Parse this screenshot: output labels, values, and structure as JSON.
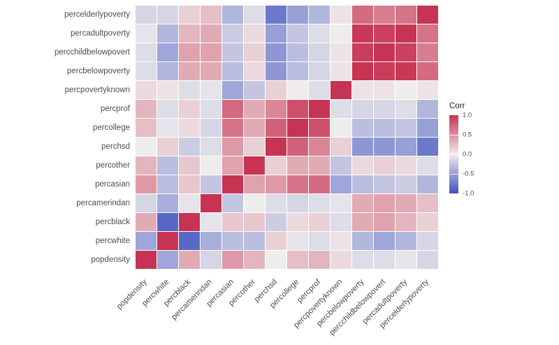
{
  "figure": {
    "background": "#ffffff"
  },
  "chart_data": {
    "type": "heatmap",
    "title": "",
    "variables": [
      "popdensity",
      "percwhite",
      "percblack",
      "percamerindan",
      "percasian",
      "percother",
      "perchsd",
      "percollege",
      "percprof",
      "percpovertyknown",
      "percbelowpoverty",
      "percchildbelowpovert",
      "percadultpoverty",
      "percelderlypoverty"
    ],
    "row_order_note": "matrix rows/cols follow `variables`; displayed with first variable at bottom-left, diagonal running bottom-left to top-right",
    "value_range": [
      -1,
      1
    ],
    "matrix": [
      [
        1.0,
        -0.45,
        0.35,
        -0.15,
        0.45,
        0.3,
        0.0,
        0.25,
        0.3,
        0.1,
        -0.1,
        -0.1,
        -0.05,
        -0.15
      ],
      [
        -0.45,
        1.0,
        -0.85,
        -0.4,
        -0.3,
        -0.3,
        0.15,
        -0.05,
        -0.1,
        0.05,
        -0.35,
        -0.45,
        -0.35,
        -0.15
      ],
      [
        0.35,
        -0.85,
        1.0,
        -0.05,
        0.2,
        0.2,
        -0.2,
        0.1,
        0.15,
        -0.1,
        0.35,
        0.4,
        0.3,
        0.15
      ],
      [
        -0.15,
        -0.4,
        -0.05,
        1.0,
        -0.25,
        0.0,
        -0.1,
        -0.15,
        -0.1,
        -0.05,
        0.35,
        0.4,
        0.35,
        0.25
      ],
      [
        0.45,
        -0.3,
        0.2,
        -0.25,
        1.0,
        0.4,
        0.45,
        0.65,
        0.7,
        -0.45,
        -0.3,
        -0.25,
        -0.2,
        -0.35
      ],
      [
        0.3,
        -0.3,
        0.2,
        0.0,
        0.4,
        1.0,
        0.15,
        0.35,
        0.35,
        -0.25,
        0.1,
        0.15,
        0.1,
        -0.1
      ],
      [
        0.0,
        0.15,
        -0.2,
        -0.1,
        0.45,
        0.15,
        1.0,
        0.75,
        0.55,
        0.15,
        -0.55,
        -0.55,
        -0.5,
        -0.75
      ],
      [
        0.25,
        -0.05,
        0.1,
        -0.15,
        0.65,
        0.35,
        0.75,
        1.0,
        0.85,
        0.0,
        -0.3,
        -0.3,
        -0.25,
        -0.5
      ],
      [
        0.3,
        -0.1,
        0.15,
        -0.1,
        0.7,
        0.35,
        0.55,
        0.85,
        1.0,
        -0.1,
        -0.15,
        -0.15,
        -0.1,
        -0.35
      ],
      [
        0.1,
        0.05,
        -0.1,
        -0.05,
        -0.45,
        -0.25,
        0.15,
        0.0,
        -0.1,
        1.0,
        0.05,
        0.05,
        0.0,
        0.05
      ],
      [
        -0.1,
        -0.35,
        0.35,
        0.35,
        -0.3,
        0.1,
        -0.55,
        -0.3,
        -0.15,
        0.05,
        1.0,
        0.95,
        0.97,
        0.7
      ],
      [
        -0.1,
        -0.45,
        0.4,
        0.4,
        -0.25,
        0.15,
        -0.55,
        -0.3,
        -0.15,
        0.05,
        0.95,
        1.0,
        0.93,
        0.6
      ],
      [
        -0.05,
        -0.35,
        0.3,
        0.35,
        -0.2,
        0.1,
        -0.5,
        -0.25,
        -0.1,
        0.0,
        0.97,
        0.93,
        1.0,
        0.65
      ],
      [
        -0.15,
        -0.15,
        0.15,
        0.25,
        -0.35,
        -0.1,
        -0.75,
        -0.5,
        -0.35,
        0.05,
        0.7,
        0.6,
        0.65,
        1.0
      ]
    ],
    "legend": {
      "title": "Corr",
      "ticks": [
        "1.0",
        "0.5",
        "0.0",
        "-0.5",
        "-1.0"
      ]
    },
    "palette": {
      "high": "#C73352",
      "mid": "#EFECEC",
      "low": "#3F51C1"
    }
  }
}
